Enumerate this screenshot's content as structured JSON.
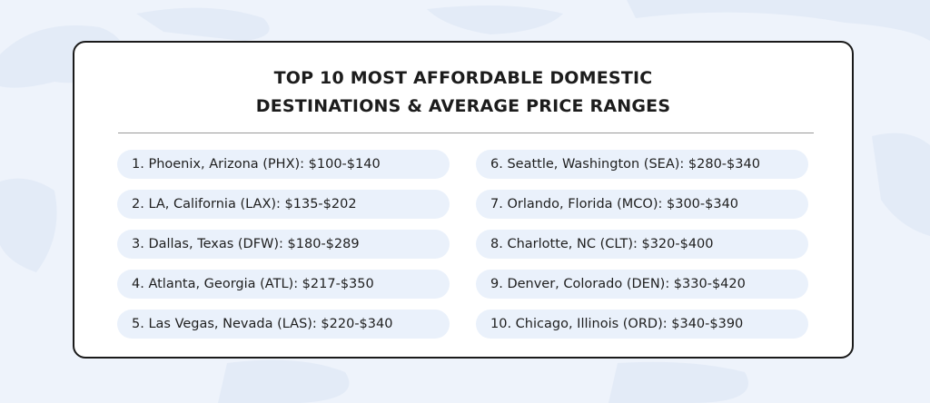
{
  "title": {
    "line1": "TOP 10 MOST AFFORDABLE DOMESTIC",
    "line2": "DESTINATIONS & AVERAGE PRICE RANGES"
  },
  "destinations": {
    "left": [
      "1. Phoenix, Arizona (PHX): $100-$140",
      "2. LA, California (LAX): $135-$202",
      "3. Dallas, Texas (DFW): $180-$289",
      "4. Atlanta, Georgia (ATL): $217-$350",
      "5. Las Vegas, Nevada (LAS): $220-$340"
    ],
    "right": [
      "6. Seattle, Washington (SEA): $280-$340",
      "7. Orlando, Florida (MCO): $300-$340",
      "8. Charlotte, NC (CLT): $320-$400",
      "9. Denver, Colorado (DEN): $330-$420",
      "10. Chicago, Illinois (ORD): $340-$390"
    ]
  },
  "colors": {
    "background": "#eef3fb",
    "card": "#ffffff",
    "pill": "#eaf1fb",
    "text": "#1e1e1e"
  }
}
